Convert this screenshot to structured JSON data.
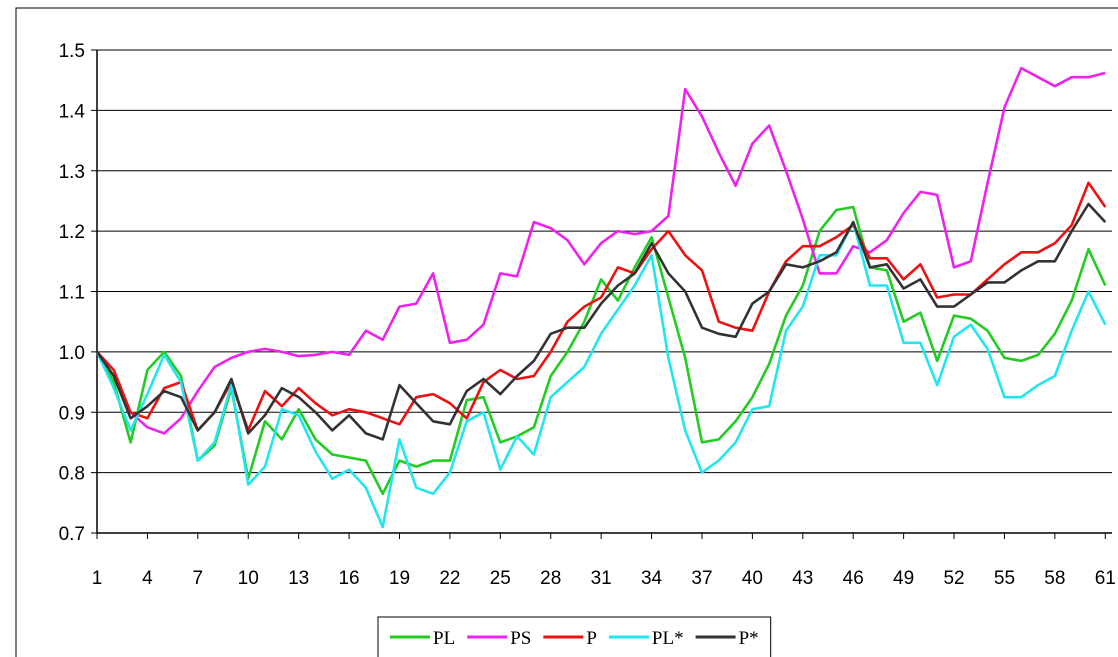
{
  "chart_data": {
    "type": "line",
    "x": [
      1,
      2,
      3,
      4,
      5,
      6,
      7,
      8,
      9,
      10,
      11,
      12,
      13,
      14,
      15,
      16,
      17,
      18,
      19,
      20,
      21,
      22,
      23,
      24,
      25,
      26,
      27,
      28,
      29,
      30,
      31,
      32,
      33,
      34,
      35,
      36,
      37,
      38,
      39,
      40,
      41,
      42,
      43,
      44,
      45,
      46,
      47,
      48,
      49,
      50,
      51,
      52,
      53,
      54,
      55,
      56,
      57,
      58,
      59,
      60,
      61
    ],
    "xlim": [
      1,
      61.4
    ],
    "xticks": [
      1,
      4,
      7,
      10,
      13,
      16,
      19,
      22,
      25,
      28,
      31,
      34,
      37,
      40,
      43,
      46,
      49,
      52,
      55,
      58,
      61
    ],
    "ylim": [
      0.7,
      1.5
    ],
    "yticks": [
      0.7,
      0.8,
      0.9,
      {
        "value": 1,
        "label": "1.0"
      },
      1.1,
      1.2,
      1.3,
      1.4,
      1.5
    ],
    "grid": true,
    "legend": "bottom",
    "series": [
      {
        "name": "PL",
        "color": "#22cc22",
        "values": [
          1.0,
          0.95,
          0.85,
          0.97,
          1.0,
          0.96,
          0.82,
          0.845,
          0.94,
          0.79,
          0.885,
          0.855,
          0.905,
          0.855,
          0.83,
          0.825,
          0.82,
          0.765,
          0.82,
          0.81,
          0.82,
          0.82,
          0.92,
          0.925,
          0.85,
          0.86,
          0.875,
          0.96,
          1.0,
          1.05,
          1.12,
          1.085,
          1.14,
          1.19,
          1.09,
          0.99,
          0.85,
          0.855,
          0.885,
          0.925,
          0.98,
          1.06,
          1.11,
          1.2,
          1.235,
          1.24,
          1.14,
          1.135,
          1.05,
          1.065,
          0.985,
          1.06,
          1.055,
          1.035,
          0.99,
          0.985,
          0.995,
          1.03,
          1.085,
          1.17,
          1.11
        ]
      },
      {
        "name": "PS",
        "color": "#ee22ee",
        "values": [
          1.0,
          0.96,
          0.9,
          0.875,
          0.865,
          0.89,
          0.935,
          0.975,
          0.99,
          1.0,
          1.005,
          1.0,
          0.993,
          0.995,
          1.0,
          0.995,
          1.035,
          1.02,
          1.075,
          1.08,
          1.13,
          1.015,
          1.02,
          1.045,
          1.13,
          1.125,
          1.215,
          1.205,
          1.185,
          1.145,
          1.18,
          1.2,
          1.195,
          1.2,
          1.225,
          1.435,
          1.39,
          1.33,
          1.275,
          1.345,
          1.375,
          1.3,
          1.22,
          1.13,
          1.13,
          1.175,
          1.165,
          1.185,
          1.23,
          1.265,
          1.26,
          1.14,
          1.15,
          1.28,
          1.405,
          1.47,
          1.455,
          1.44,
          1.455,
          1.455,
          1.462
        ]
      },
      {
        "name": "P",
        "color": "#ee1111",
        "values": [
          1.0,
          0.97,
          0.9,
          0.89,
          0.94,
          0.95,
          0.87,
          0.9,
          0.95,
          0.87,
          0.935,
          0.91,
          0.94,
          0.915,
          0.895,
          0.905,
          0.9,
          0.89,
          0.88,
          0.925,
          0.93,
          0.915,
          0.89,
          0.95,
          0.97,
          0.955,
          0.96,
          1.0,
          1.05,
          1.075,
          1.09,
          1.14,
          1.13,
          1.17,
          1.2,
          1.16,
          1.135,
          1.05,
          1.04,
          1.035,
          1.1,
          1.15,
          1.175,
          1.175,
          1.19,
          1.21,
          1.155,
          1.155,
          1.12,
          1.145,
          1.09,
          1.095,
          1.095,
          1.12,
          1.145,
          1.165,
          1.165,
          1.18,
          1.21,
          1.28,
          1.24
        ]
      },
      {
        "name": "PL*",
        "color": "#22e5ee",
        "values": [
          1.0,
          0.94,
          0.87,
          0.93,
          0.995,
          0.95,
          0.82,
          0.85,
          0.945,
          0.78,
          0.81,
          0.905,
          0.895,
          0.835,
          0.79,
          0.805,
          0.775,
          0.71,
          0.855,
          0.775,
          0.765,
          0.8,
          0.885,
          0.9,
          0.805,
          0.86,
          0.83,
          0.925,
          0.95,
          0.975,
          1.03,
          1.07,
          1.11,
          1.16,
          0.99,
          0.87,
          0.8,
          0.82,
          0.85,
          0.905,
          0.91,
          1.035,
          1.075,
          1.16,
          1.16,
          1.215,
          1.11,
          1.11,
          1.015,
          1.015,
          0.945,
          1.025,
          1.045,
          1.005,
          0.925,
          0.925,
          0.945,
          0.96,
          1.035,
          1.1,
          1.045
        ]
      },
      {
        "name": "P*",
        "color": "#333333",
        "values": [
          1.0,
          0.96,
          0.89,
          0.91,
          0.935,
          0.925,
          0.87,
          0.9,
          0.955,
          0.865,
          0.895,
          0.94,
          0.925,
          0.9,
          0.87,
          0.895,
          0.865,
          0.855,
          0.945,
          0.915,
          0.885,
          0.88,
          0.935,
          0.955,
          0.93,
          0.96,
          0.985,
          1.03,
          1.04,
          1.04,
          1.08,
          1.11,
          1.13,
          1.18,
          1.13,
          1.1,
          1.04,
          1.03,
          1.025,
          1.08,
          1.1,
          1.145,
          1.14,
          1.15,
          1.165,
          1.215,
          1.14,
          1.145,
          1.105,
          1.12,
          1.075,
          1.075,
          1.095,
          1.115,
          1.115,
          1.135,
          1.15,
          1.15,
          1.2,
          1.245,
          1.215
        ]
      }
    ]
  }
}
